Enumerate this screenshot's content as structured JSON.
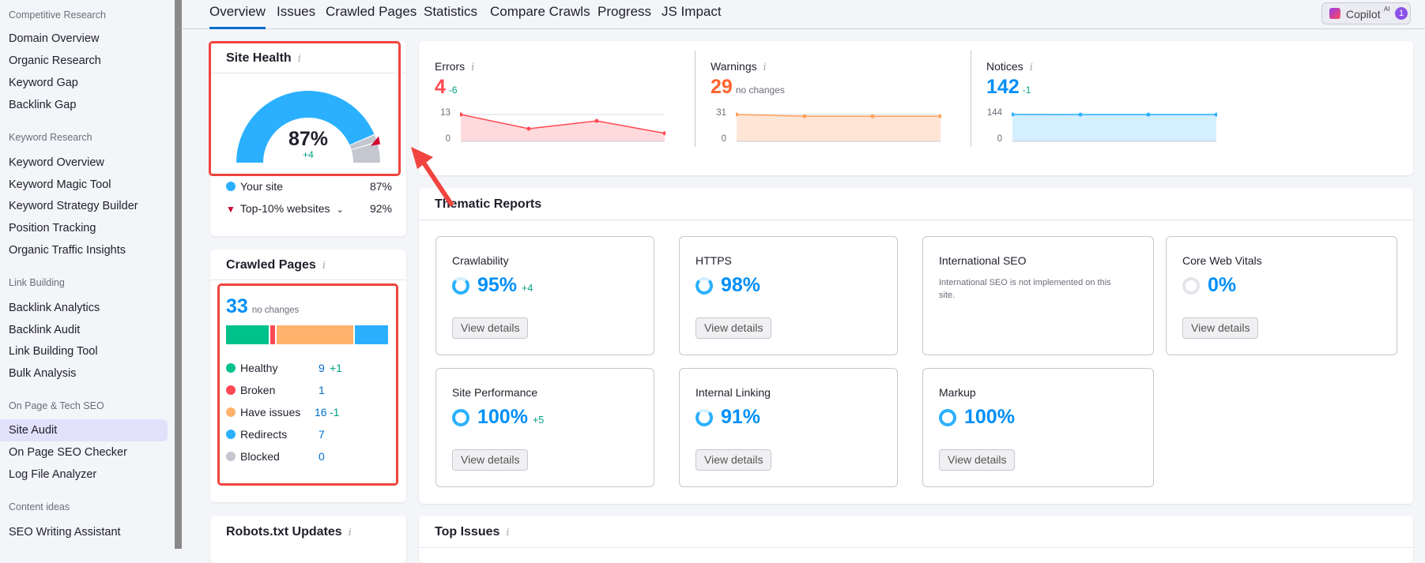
{
  "sidebar": {
    "sections": [
      {
        "header": "Competitive Research",
        "items": [
          "Domain Overview",
          "Organic Research",
          "Keyword Gap",
          "Backlink Gap"
        ]
      },
      {
        "header": "Keyword Research",
        "items": [
          "Keyword Overview",
          "Keyword Magic Tool",
          "Keyword Strategy Builder",
          "Position Tracking",
          "Organic Traffic Insights"
        ]
      },
      {
        "header": "Link Building",
        "items": [
          "Backlink Analytics",
          "Backlink Audit",
          "Link Building Tool",
          "Bulk Analysis"
        ]
      },
      {
        "header": "On Page & Tech SEO",
        "items": [
          "Site Audit",
          "On Page SEO Checker",
          "Log File Analyzer"
        ]
      },
      {
        "header": "Content ideas",
        "items": [
          "SEO Writing Assistant"
        ]
      }
    ],
    "active": "Site Audit"
  },
  "tabs": [
    "Overview",
    "Issues",
    "Crawled Pages",
    "Statistics",
    "Compare Crawls",
    "Progress",
    "JS Impact"
  ],
  "active_tab": "Overview",
  "copilot": {
    "label": "Copilot",
    "sup": "AI",
    "badge": "1"
  },
  "site_health": {
    "title": "Site Health",
    "info": "i",
    "value": "87%",
    "delta": "+4",
    "percent": 87,
    "top10_percent": 92,
    "legend": [
      {
        "label": "Your site",
        "value": "87%"
      },
      {
        "label": "Top-10% websites",
        "value": "92%"
      }
    ]
  },
  "issues_summary": [
    {
      "title": "Errors",
      "info": "i",
      "value": "4",
      "delta": "-6",
      "color": "#ff4953",
      "fill": "#ffdadd",
      "ymax": "13",
      "ymin": "0",
      "trend": [
        13,
        6.1,
        9.9,
        3.9
      ]
    },
    {
      "title": "Warnings",
      "info": "i",
      "value": "29",
      "delta": "no changes",
      "color": "#ff642d",
      "fill": "#ffe5d6",
      "line": "#ffa25c",
      "ymax": "31",
      "ymin": "0",
      "trend": [
        31,
        29,
        29,
        29
      ]
    },
    {
      "title": "Notices",
      "info": "i",
      "value": "142",
      "delta": "-1",
      "color": "#008ff8",
      "fill": "#d4efff",
      "line": "#2bb0ff",
      "ymax": "144",
      "ymin": "0",
      "trend": [
        144,
        143.5,
        143.5,
        143.5
      ]
    }
  ],
  "crawled_pages": {
    "title": "Crawled Pages",
    "info": "i",
    "total": "33",
    "delta": "no changes",
    "rows": [
      {
        "label": "Healthy",
        "value": "9",
        "delta": "+1",
        "color": "#00c18b",
        "n": 9
      },
      {
        "label": "Broken",
        "value": "1",
        "delta": "",
        "color": "#ff4953",
        "n": 1
      },
      {
        "label": "Have issues",
        "value": "16",
        "delta": "-1",
        "color": "#ffb26b",
        "n": 16
      },
      {
        "label": "Redirects",
        "value": "7",
        "delta": "",
        "color": "#2bb0ff",
        "n": 7
      },
      {
        "label": "Blocked",
        "value": "0",
        "delta": "",
        "color": "#c4c7cf",
        "n": 0
      }
    ]
  },
  "thematic": {
    "title": "Thematic Reports",
    "button": "View details",
    "cards": [
      {
        "title": "Crawlability",
        "value": "95%",
        "delta": "+4",
        "pct": 95
      },
      {
        "title": "HTTPS",
        "value": "98%",
        "delta": "",
        "pct": 98
      },
      {
        "title": "International SEO",
        "note": "International SEO is not implemented on this site."
      },
      {
        "title": "Core Web Vitals",
        "value": "0%",
        "delta": "",
        "pct": 0
      },
      {
        "title": "Site Performance",
        "value": "100%",
        "delta": "+5",
        "pct": 100
      },
      {
        "title": "Internal Linking",
        "value": "91%",
        "delta": "",
        "pct": 91
      },
      {
        "title": "Markup",
        "value": "100%",
        "delta": "",
        "pct": 100
      }
    ]
  },
  "robots": {
    "title": "Robots.txt Updates",
    "info": "i"
  },
  "top_issues": {
    "title": "Top Issues",
    "info": "i"
  }
}
